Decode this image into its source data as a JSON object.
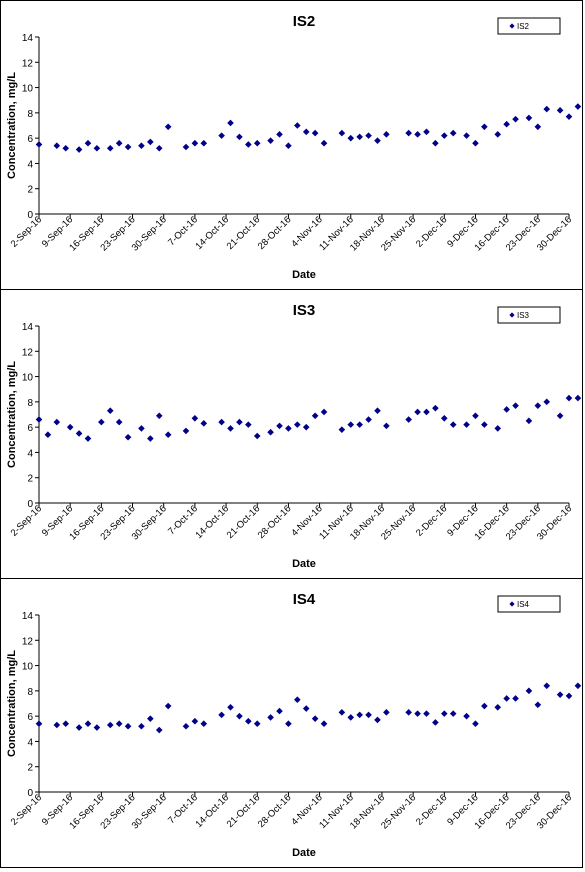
{
  "chart_data": [
    {
      "type": "scatter",
      "title": "IS2",
      "xlabel": "Date",
      "ylabel": "Concentration, mg/L",
      "ylim": [
        0,
        14
      ],
      "yticks": [
        0,
        2,
        4,
        6,
        8,
        10,
        12,
        14
      ],
      "xlim": [
        "2016-09-02",
        "2016-12-30"
      ],
      "xtick_labels": [
        "2-Sep-16",
        "9-Sep-16",
        "16-Sep-16",
        "23-Sep-16",
        "30-Sep-16",
        "7-Oct-16",
        "14-Oct-16",
        "21-Oct-16",
        "28-Oct-16",
        "4-Nov-16",
        "11-Nov-16",
        "18-Nov-16",
        "25-Nov-16",
        "2-Dec-16",
        "9-Dec-16",
        "16-Dec-16",
        "23-Dec-16",
        "30-Dec-16"
      ],
      "legend_position": "top-right",
      "grid": false,
      "marker": "diamond",
      "color": "#00008B",
      "series": [
        {
          "name": "IS2",
          "x": [
            "2016-09-02",
            "2016-09-06",
            "2016-09-08",
            "2016-09-11",
            "2016-09-13",
            "2016-09-15",
            "2016-09-18",
            "2016-09-20",
            "2016-09-22",
            "2016-09-25",
            "2016-09-27",
            "2016-09-29",
            "2016-10-01",
            "2016-10-05",
            "2016-10-07",
            "2016-10-09",
            "2016-10-13",
            "2016-10-15",
            "2016-10-17",
            "2016-10-19",
            "2016-10-21",
            "2016-10-24",
            "2016-10-26",
            "2016-10-28",
            "2016-10-30",
            "2016-11-01",
            "2016-11-03",
            "2016-11-05",
            "2016-11-09",
            "2016-11-11",
            "2016-11-13",
            "2016-11-15",
            "2016-11-17",
            "2016-11-19",
            "2016-11-24",
            "2016-11-26",
            "2016-11-28",
            "2016-11-30",
            "2016-12-02",
            "2016-12-04",
            "2016-12-07",
            "2016-12-09",
            "2016-12-11",
            "2016-12-14",
            "2016-12-16",
            "2016-12-18",
            "2016-12-21",
            "2016-12-23",
            "2016-12-25",
            "2016-12-28",
            "2016-12-30",
            "2017-01-01"
          ],
          "y": [
            5.5,
            5.4,
            5.2,
            5.1,
            5.6,
            5.2,
            5.2,
            5.6,
            5.3,
            5.4,
            5.7,
            5.2,
            6.9,
            5.3,
            5.6,
            5.6,
            6.2,
            7.2,
            6.1,
            5.5,
            5.6,
            5.8,
            6.3,
            5.4,
            7.0,
            6.5,
            6.4,
            5.6,
            6.4,
            6.0,
            6.1,
            6.2,
            5.8,
            6.3,
            6.4,
            6.3,
            6.5,
            5.6,
            6.2,
            6.4,
            6.2,
            5.6,
            6.9,
            6.3,
            7.1,
            7.5,
            7.6,
            6.9,
            8.3,
            8.2,
            7.7,
            8.5
          ]
        }
      ]
    },
    {
      "type": "scatter",
      "title": "IS3",
      "xlabel": "Date",
      "ylabel": "Concentration, mg/L",
      "ylim": [
        0,
        14
      ],
      "yticks": [
        0,
        2,
        4,
        6,
        8,
        10,
        12,
        14
      ],
      "xlim": [
        "2016-09-02",
        "2016-12-30"
      ],
      "xtick_labels": [
        "2-Sep-16",
        "9-Sep-16",
        "16-Sep-16",
        "23-Sep-16",
        "30-Sep-16",
        "7-Oct-16",
        "14-Oct-16",
        "21-Oct-16",
        "28-Oct-16",
        "4-Nov-16",
        "11-Nov-16",
        "18-Nov-16",
        "25-Nov-16",
        "2-Dec-16",
        "9-Dec-16",
        "16-Dec-16",
        "23-Dec-16",
        "30-Dec-16"
      ],
      "legend_position": "top-right",
      "grid": false,
      "marker": "diamond",
      "color": "#00008B",
      "series": [
        {
          "name": "IS3",
          "x": [
            "2016-09-02",
            "2016-09-04",
            "2016-09-06",
            "2016-09-09",
            "2016-09-11",
            "2016-09-13",
            "2016-09-16",
            "2016-09-18",
            "2016-09-20",
            "2016-09-22",
            "2016-09-25",
            "2016-09-27",
            "2016-09-29",
            "2016-10-01",
            "2016-10-05",
            "2016-10-07",
            "2016-10-09",
            "2016-10-13",
            "2016-10-15",
            "2016-10-17",
            "2016-10-19",
            "2016-10-21",
            "2016-10-24",
            "2016-10-26",
            "2016-10-28",
            "2016-10-30",
            "2016-11-01",
            "2016-11-03",
            "2016-11-05",
            "2016-11-09",
            "2016-11-11",
            "2016-11-13",
            "2016-11-15",
            "2016-11-17",
            "2016-11-19",
            "2016-11-24",
            "2016-11-26",
            "2016-11-28",
            "2016-11-30",
            "2016-12-02",
            "2016-12-04",
            "2016-12-07",
            "2016-12-09",
            "2016-12-11",
            "2016-12-14",
            "2016-12-16",
            "2016-12-18",
            "2016-12-21",
            "2016-12-23",
            "2016-12-25",
            "2016-12-28",
            "2016-12-30",
            "2017-01-01"
          ],
          "y": [
            6.6,
            5.4,
            6.4,
            6.0,
            5.5,
            5.1,
            6.4,
            7.3,
            6.4,
            5.2,
            5.9,
            5.1,
            6.9,
            5.4,
            5.7,
            6.7,
            6.3,
            6.4,
            5.9,
            6.4,
            6.2,
            5.3,
            5.6,
            6.1,
            5.9,
            6.2,
            6.0,
            6.9,
            7.2,
            5.8,
            6.2,
            6.2,
            6.6,
            7.3,
            6.1,
            6.6,
            7.2,
            7.2,
            7.5,
            6.7,
            6.2,
            6.2,
            6.9,
            6.2,
            5.9,
            7.4,
            7.7,
            6.5,
            7.7,
            8.0,
            6.9,
            8.3,
            8.3
          ]
        }
      ]
    },
    {
      "type": "scatter",
      "title": "IS4",
      "xlabel": "Date",
      "ylabel": "Concentration, mg/L",
      "ylim": [
        0,
        14
      ],
      "yticks": [
        0,
        2,
        4,
        6,
        8,
        10,
        12,
        14
      ],
      "xlim": [
        "2016-09-02",
        "2016-12-30"
      ],
      "xtick_labels": [
        "2-Sep-16",
        "9-Sep-16",
        "16-Sep-16",
        "23-Sep-16",
        "30-Sep-16",
        "7-Oct-16",
        "14-Oct-16",
        "21-Oct-16",
        "28-Oct-16",
        "4-Nov-16",
        "11-Nov-16",
        "18-Nov-16",
        "25-Nov-16",
        "2-Dec-16",
        "9-Dec-16",
        "16-Dec-16",
        "23-Dec-16",
        "30-Dec-16"
      ],
      "legend_position": "top-right",
      "grid": false,
      "marker": "diamond",
      "color": "#00008B",
      "series": [
        {
          "name": "IS4",
          "x": [
            "2016-09-02",
            "2016-09-06",
            "2016-09-08",
            "2016-09-11",
            "2016-09-13",
            "2016-09-15",
            "2016-09-18",
            "2016-09-20",
            "2016-09-22",
            "2016-09-25",
            "2016-09-27",
            "2016-09-29",
            "2016-10-01",
            "2016-10-05",
            "2016-10-07",
            "2016-10-09",
            "2016-10-13",
            "2016-10-15",
            "2016-10-17",
            "2016-10-19",
            "2016-10-21",
            "2016-10-24",
            "2016-10-26",
            "2016-10-28",
            "2016-10-30",
            "2016-11-01",
            "2016-11-03",
            "2016-11-05",
            "2016-11-09",
            "2016-11-11",
            "2016-11-13",
            "2016-11-15",
            "2016-11-17",
            "2016-11-19",
            "2016-11-24",
            "2016-11-26",
            "2016-11-28",
            "2016-11-30",
            "2016-12-02",
            "2016-12-04",
            "2016-12-07",
            "2016-12-09",
            "2016-12-11",
            "2016-12-14",
            "2016-12-16",
            "2016-12-18",
            "2016-12-21",
            "2016-12-23",
            "2016-12-25",
            "2016-12-28",
            "2016-12-30",
            "2017-01-01"
          ],
          "y": [
            5.4,
            5.3,
            5.4,
            5.1,
            5.4,
            5.1,
            5.3,
            5.4,
            5.2,
            5.2,
            5.8,
            4.9,
            6.8,
            5.2,
            5.6,
            5.4,
            6.1,
            6.7,
            6.0,
            5.6,
            5.4,
            5.9,
            6.4,
            5.4,
            7.3,
            6.6,
            5.8,
            5.4,
            6.3,
            5.9,
            6.1,
            6.1,
            5.7,
            6.3,
            6.3,
            6.2,
            6.2,
            5.5,
            6.2,
            6.2,
            6.0,
            5.4,
            6.8,
            6.7,
            7.4,
            7.4,
            8.0,
            6.9,
            8.4,
            7.7,
            7.6,
            8.4
          ]
        }
      ]
    }
  ]
}
